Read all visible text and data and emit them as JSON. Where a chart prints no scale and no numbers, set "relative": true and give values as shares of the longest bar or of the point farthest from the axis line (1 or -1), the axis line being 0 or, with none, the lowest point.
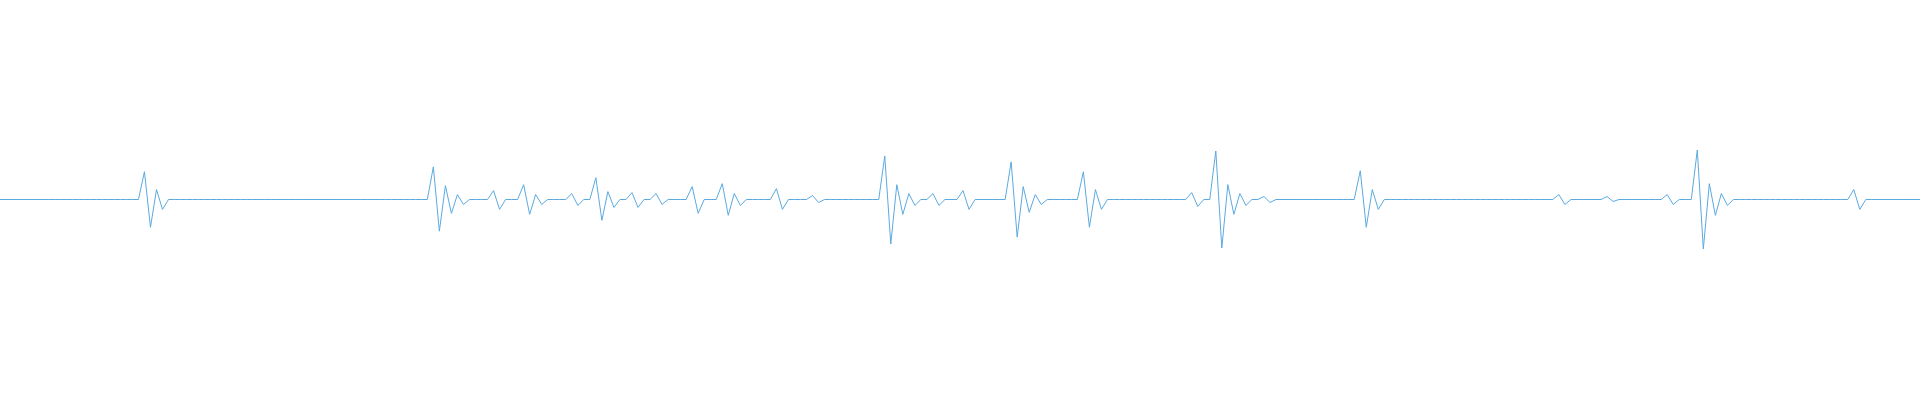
{
  "chart_data": {
    "type": "line",
    "relative": true,
    "categories": [
      null,
      null,
      null,
      null,
      null,
      null,
      null,
      null,
      null,
      null,
      null,
      null,
      null,
      null,
      null,
      null,
      null,
      null,
      null,
      null,
      null,
      null,
      null,
      null,
      null,
      null,
      null,
      null,
      null,
      null,
      null,
      null,
      null,
      null,
      null,
      null,
      null,
      null,
      null,
      null,
      null,
      null,
      null,
      null,
      null,
      null,
      null,
      null,
      null,
      null,
      null,
      null,
      null,
      null,
      null,
      null,
      null,
      null,
      null,
      null,
      null,
      null,
      null,
      null,
      null,
      null,
      null,
      null,
      null,
      null,
      null,
      null,
      null,
      null,
      null,
      null,
      null,
      null,
      null,
      null,
      null,
      null,
      null,
      null,
      null,
      null,
      null,
      null,
      null,
      null,
      null,
      null,
      null,
      null,
      null,
      null,
      null,
      null,
      null,
      null,
      null,
      null,
      null,
      null,
      null,
      null,
      null,
      null,
      null,
      null,
      null,
      null,
      null,
      null,
      null,
      null,
      null,
      null,
      null,
      null,
      null,
      null,
      null,
      null,
      null,
      null,
      null,
      null,
      null,
      null,
      null,
      null,
      null,
      null,
      null,
      null,
      null,
      null,
      null,
      null,
      null,
      null,
      null,
      null,
      null,
      null,
      null,
      null,
      null,
      null,
      null,
      null,
      null,
      null,
      null,
      null,
      null,
      null,
      null,
      null,
      null,
      null,
      null,
      null,
      null,
      null,
      null,
      null,
      null,
      null,
      null,
      null,
      null,
      null,
      null,
      null,
      null,
      null,
      null,
      null,
      null,
      null,
      null,
      null,
      null,
      null,
      null,
      null,
      null,
      null,
      null,
      null,
      null,
      null,
      null,
      null,
      null,
      null,
      null,
      null,
      null,
      null,
      null,
      null,
      null,
      null,
      null,
      null,
      null,
      null,
      null,
      null,
      null,
      null,
      null,
      null,
      null,
      null,
      null,
      null,
      null,
      null,
      null,
      null,
      null,
      null,
      null,
      null,
      null,
      null,
      null,
      null,
      null,
      null,
      null,
      null,
      null,
      null,
      null,
      null,
      null,
      null,
      null,
      null,
      null,
      null,
      null,
      null,
      null,
      null,
      null,
      null,
      null,
      null,
      null,
      null,
      null,
      null,
      null,
      null,
      null,
      null,
      null,
      null,
      null,
      null,
      null,
      null,
      null,
      null,
      null,
      null,
      null,
      null,
      null,
      null,
      null,
      null,
      null,
      null,
      null,
      null,
      null,
      null,
      null,
      null,
      null,
      null,
      null,
      null,
      null,
      null,
      null,
      null,
      null,
      null,
      null,
      null,
      null,
      null,
      null,
      null,
      null,
      null,
      null,
      null,
      null,
      null,
      null,
      null,
      null,
      null,
      null,
      null,
      null,
      null,
      null,
      null,
      null,
      null
    ],
    "series": [
      {
        "color": "#5aaae0",
        "values": [
          0.5,
          0.5,
          0.5,
          0.5,
          0.5,
          0.5,
          0.5,
          0.5,
          0.5,
          0.5,
          0.5,
          0.5,
          0.5,
          0.5,
          0.5,
          0.5,
          0.5,
          0.5,
          0.5,
          0.5,
          0.5,
          0.5,
          0.5,
          0.5,
          0.78,
          0.22,
          0.6,
          0.4,
          0.5,
          0.5,
          0.5,
          0.5,
          0.5,
          0.5,
          0.5,
          0.5,
          0.5,
          0.5,
          0.5,
          0.5,
          0.5,
          0.5,
          0.5,
          0.5,
          0.5,
          0.5,
          0.5,
          0.5,
          0.5,
          0.5,
          0.5,
          0.5,
          0.5,
          0.5,
          0.5,
          0.5,
          0.5,
          0.5,
          0.5,
          0.5,
          0.5,
          0.5,
          0.5,
          0.5,
          0.5,
          0.5,
          0.5,
          0.5,
          0.5,
          0.5,
          0.5,
          0.5,
          0.83,
          0.18,
          0.64,
          0.36,
          0.55,
          0.45,
          0.5,
          0.5,
          0.5,
          0.5,
          0.59,
          0.4,
          0.5,
          0.5,
          0.5,
          0.65,
          0.35,
          0.55,
          0.45,
          0.5,
          0.5,
          0.5,
          0.5,
          0.56,
          0.44,
          0.5,
          0.5,
          0.72,
          0.29,
          0.58,
          0.42,
          0.5,
          0.5,
          0.57,
          0.42,
          0.5,
          0.5,
          0.56,
          0.45,
          0.5,
          0.5,
          0.5,
          0.5,
          0.63,
          0.36,
          0.5,
          0.5,
          0.5,
          0.66,
          0.34,
          0.56,
          0.44,
          0.5,
          0.5,
          0.5,
          0.5,
          0.5,
          0.61,
          0.4,
          0.5,
          0.5,
          0.5,
          0.5,
          0.54,
          0.47,
          0.5,
          0.5,
          0.5,
          0.5,
          0.5,
          0.5,
          0.5,
          0.5,
          0.5,
          0.5,
          0.94,
          0.05,
          0.65,
          0.35,
          0.56,
          0.44,
          0.5,
          0.5,
          0.56,
          0.44,
          0.5,
          0.5,
          0.5,
          0.59,
          0.4,
          0.5,
          0.5,
          0.5,
          0.5,
          0.5,
          0.5,
          0.88,
          0.12,
          0.63,
          0.37,
          0.55,
          0.45,
          0.5,
          0.5,
          0.5,
          0.5,
          0.5,
          0.5,
          0.78,
          0.22,
          0.6,
          0.4,
          0.5,
          0.5,
          0.5,
          0.5,
          0.5,
          0.5,
          0.5,
          0.5,
          0.5,
          0.5,
          0.5,
          0.5,
          0.5,
          0.5,
          0.57,
          0.43,
          0.5,
          0.5,
          0.99,
          0.01,
          0.65,
          0.35,
          0.56,
          0.44,
          0.5,
          0.5,
          0.53,
          0.47,
          0.5,
          0.5,
          0.5,
          0.5,
          0.5,
          0.5,
          0.5,
          0.5,
          0.5,
          0.5,
          0.5,
          0.5,
          0.5,
          0.5,
          0.79,
          0.22,
          0.6,
          0.4,
          0.5,
          0.5,
          0.5,
          0.5,
          0.5,
          0.5,
          0.5,
          0.5,
          0.5,
          0.5,
          0.5,
          0.5,
          0.5,
          0.5,
          0.5,
          0.5,
          0.5,
          0.5,
          0.5,
          0.5,
          0.5,
          0.5,
          0.5,
          0.5,
          0.5,
          0.5,
          0.5,
          0.5,
          0.5,
          0.55,
          0.45,
          0.5,
          0.5,
          0.5,
          0.5,
          0.5,
          0.5,
          0.53,
          0.48,
          0.5,
          0.5,
          0.5,
          0.5,
          0.5,
          0.5,
          0.5,
          0.5,
          0.55,
          0.45,
          0.5,
          0.5,
          0.5,
          1,
          0,
          0.66,
          0.34,
          0.56,
          0.44,
          0.5,
          0.5,
          0.5,
          0.5,
          0.5,
          0.5,
          0.5,
          0.5,
          0.5,
          0.5,
          0.5,
          0.5,
          0.5,
          0.5,
          0.5,
          0.5,
          0.5,
          0.5,
          0.5,
          0.5,
          0.6,
          0.4,
          0.5,
          0.5,
          0.5,
          0.5,
          0.5,
          0.5,
          0.5,
          0.5,
          0.5,
          0.5
        ]
      }
    ]
  }
}
